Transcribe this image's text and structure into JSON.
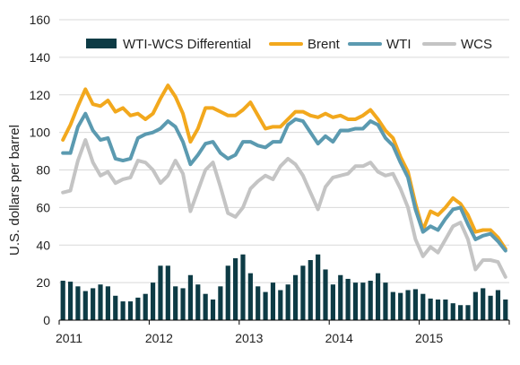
{
  "chart_data": {
    "type": "bar+line",
    "ylabel": "U.S. dollars per barrel",
    "xlabel": "",
    "ylim": [
      0,
      160
    ],
    "yticks": [
      0,
      20,
      40,
      60,
      80,
      100,
      120,
      140,
      160
    ],
    "xlim": [
      2011,
      2016
    ],
    "xticks": [
      "2011",
      "2012",
      "2013",
      "2014",
      "2015"
    ],
    "grid": true,
    "legend_position": "top",
    "colors": {
      "differential": "#0d3b45",
      "brent": "#f2a81d",
      "wti": "#5b9ab0",
      "wcs": "#c4c4c4",
      "grid": "#d9d9d9",
      "axis": "#000000"
    },
    "months": [
      "2011-01",
      "2011-02",
      "2011-03",
      "2011-04",
      "2011-05",
      "2011-06",
      "2011-07",
      "2011-08",
      "2011-09",
      "2011-10",
      "2011-11",
      "2011-12",
      "2012-01",
      "2012-02",
      "2012-03",
      "2012-04",
      "2012-05",
      "2012-06",
      "2012-07",
      "2012-08",
      "2012-09",
      "2012-10",
      "2012-11",
      "2012-12",
      "2013-01",
      "2013-02",
      "2013-03",
      "2013-04",
      "2013-05",
      "2013-06",
      "2013-07",
      "2013-08",
      "2013-09",
      "2013-10",
      "2013-11",
      "2013-12",
      "2014-01",
      "2014-02",
      "2014-03",
      "2014-04",
      "2014-05",
      "2014-06",
      "2014-07",
      "2014-08",
      "2014-09",
      "2014-10",
      "2014-11",
      "2014-12",
      "2015-01",
      "2015-02",
      "2015-03",
      "2015-04",
      "2015-05",
      "2015-06",
      "2015-07",
      "2015-08",
      "2015-09",
      "2015-10",
      "2015-11",
      "2015-12"
    ],
    "series": [
      {
        "key": "differential",
        "name": "WTI-WCS Differential",
        "type": "bar",
        "values": [
          21,
          20.5,
          18,
          15.5,
          17,
          19,
          18,
          13,
          10,
          10,
          12,
          14,
          20,
          29,
          29,
          18,
          17,
          24,
          19,
          14,
          11,
          18,
          29,
          33,
          35,
          25,
          18,
          15,
          20,
          16,
          19,
          24,
          29,
          32,
          35,
          27,
          19,
          24,
          22,
          20,
          20,
          21,
          25,
          20,
          15,
          14.5,
          16,
          16.5,
          14,
          11.5,
          11,
          11,
          9,
          8,
          8,
          15,
          17,
          13,
          16,
          11
        ]
      },
      {
        "key": "brent",
        "name": "Brent",
        "type": "line",
        "values": [
          96,
          104,
          114,
          123,
          115,
          114,
          117,
          111,
          113,
          109,
          110,
          107,
          110,
          118,
          125,
          119,
          110,
          95,
          102,
          113,
          113,
          111,
          109,
          109,
          112,
          116,
          109,
          102,
          103,
          103,
          107,
          111,
          111,
          109,
          108,
          110,
          108,
          109,
          107,
          107,
          109,
          112,
          107,
          101,
          97,
          87,
          79,
          62,
          48,
          58,
          56,
          60,
          65,
          62,
          56,
          47,
          48,
          48,
          44,
          38
        ]
      },
      {
        "key": "wti",
        "name": "WTI",
        "type": "line",
        "values": [
          89,
          89,
          103,
          110,
          101,
          96,
          97,
          86,
          85,
          86,
          97,
          99,
          100,
          102,
          106,
          103,
          95,
          83,
          88,
          94,
          95,
          89,
          86,
          88,
          95,
          95,
          93,
          92,
          95,
          95,
          104,
          107,
          106,
          100,
          94,
          98,
          95,
          101,
          101,
          102,
          102,
          106,
          104,
          97,
          93,
          84,
          76,
          59,
          47,
          50,
          48,
          54,
          59,
          60,
          51,
          43,
          45,
          46,
          42,
          37
        ]
      },
      {
        "key": "wcs",
        "name": "WCS",
        "type": "line",
        "values": [
          68,
          69,
          85,
          96,
          84,
          77,
          79,
          73,
          75,
          76,
          85,
          84,
          80,
          73,
          77,
          85,
          78,
          58,
          69,
          80,
          84,
          71,
          57,
          55,
          60,
          70,
          74,
          77,
          75,
          82,
          86,
          83,
          77,
          68,
          59,
          71,
          76,
          77,
          78,
          82,
          82,
          84,
          79,
          77,
          78,
          70,
          60,
          43,
          34,
          39,
          36,
          43,
          50,
          52,
          43,
          27,
          32,
          32,
          31,
          23
        ]
      }
    ],
    "legend": [
      "WTI-WCS Differential",
      "Brent",
      "WTI",
      "WCS"
    ]
  }
}
